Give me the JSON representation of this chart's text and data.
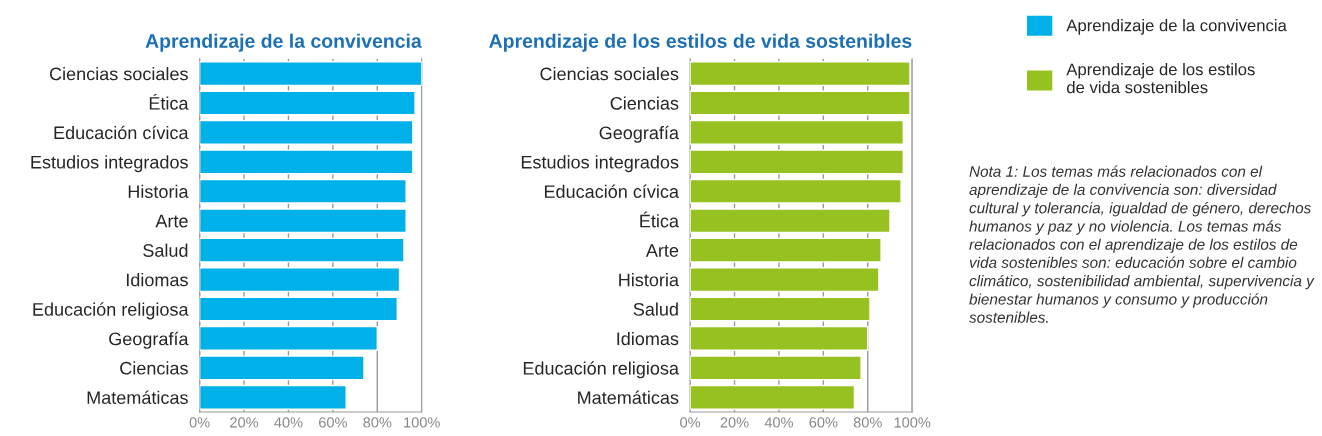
{
  "chart_data": [
    {
      "type": "bar",
      "orientation": "horizontal",
      "title": "Aprendizaje de la convivencia",
      "categories": [
        "Ciencias sociales",
        "Ética",
        "Educación cívica",
        "Estudios integrados",
        "Historia",
        "Arte",
        "Salud",
        "Idiomas",
        "Educación religiosa",
        "Geografía",
        "Ciencias",
        "Matemáticas"
      ],
      "series": [
        {
          "name": "Aprendizaje de la convivencia",
          "color": "#00b0e8",
          "values": [
            100,
            97,
            96,
            96,
            93,
            93,
            92,
            90,
            89,
            80,
            74,
            66
          ]
        }
      ],
      "xlim": [
        0,
        100
      ],
      "xticks": [
        {
          "value": 0,
          "label": "0%"
        },
        {
          "value": 20,
          "label": "20%"
        },
        {
          "value": 40,
          "label": "40%"
        },
        {
          "value": 60,
          "label": "60%"
        },
        {
          "value": 80,
          "label": "80%"
        },
        {
          "value": 100,
          "label": "100%"
        }
      ],
      "grid": "x",
      "legend": "right"
    },
    {
      "type": "bar",
      "orientation": "horizontal",
      "title": "Aprendizaje de los estilos de vida sostenibles",
      "categories": [
        "Ciencias sociales",
        "Ciencias",
        "Geografía",
        "Estudios integrados",
        "Educación cívica",
        "Ética",
        "Arte",
        "Historia",
        "Salud",
        "Idiomas",
        "Educación religiosa",
        "Matemáticas"
      ],
      "series": [
        {
          "name": "Aprendizaje de los estilos de vida sostenibles",
          "color": "#97c120",
          "values": [
            99,
            99,
            96,
            96,
            95,
            90,
            86,
            85,
            81,
            80,
            77,
            74
          ]
        }
      ],
      "xlim": [
        0,
        100
      ],
      "xticks": [
        {
          "value": 0,
          "label": "0%"
        },
        {
          "value": 20,
          "label": "20%"
        },
        {
          "value": 40,
          "label": "40%"
        },
        {
          "value": 60,
          "label": "60%"
        },
        {
          "value": 80,
          "label": "80%"
        },
        {
          "value": 100,
          "label": "100%"
        }
      ],
      "grid": "x",
      "legend": "right",
      "annotations": [
        "Nota 1: Los temas más relacionados con el aprendizaje de la convivencia son: diversidad cultural y tolerancia, igualdad de género, derechos humanos y paz y no violencia. Los temas más relacionados con el aprendizaje de los estilos de vida sostenibles son: educación sobre el cambio climático, sostenibilidad ambiental, supervivencia y bienestar humanos y consumo y producción sostenibles."
      ]
    }
  ]
}
